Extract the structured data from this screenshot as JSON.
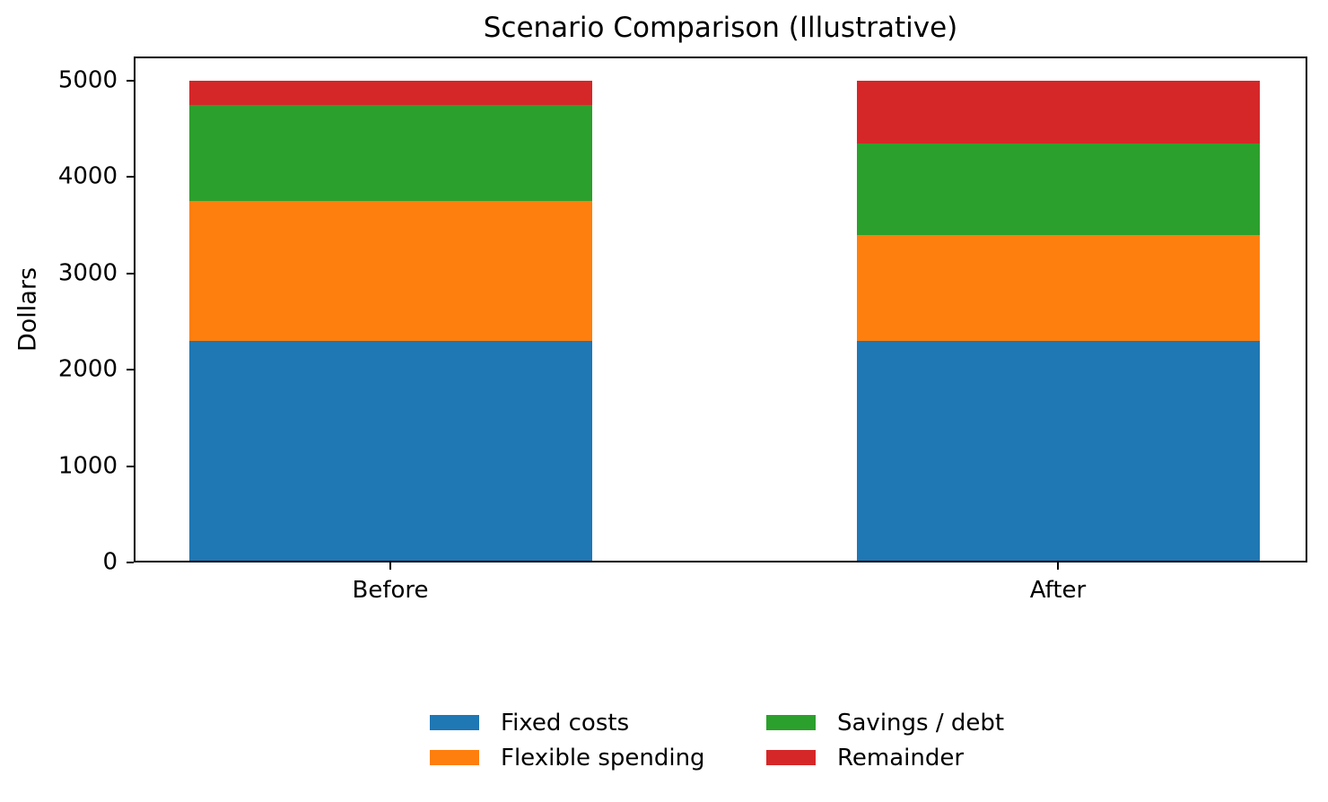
{
  "chart_data": {
    "type": "bar",
    "stacked": true,
    "title": "Scenario Comparison (Illustrative)",
    "xlabel": "",
    "ylabel": "Dollars",
    "categories": [
      "Before",
      "After"
    ],
    "series": [
      {
        "name": "Fixed costs",
        "color": "#1f77b4",
        "values": [
          2300,
          2300
        ]
      },
      {
        "name": "Flexible spending",
        "color": "#ff7f0e",
        "values": [
          1450,
          1100
        ]
      },
      {
        "name": "Savings / debt",
        "color": "#2ca02c",
        "values": [
          1000,
          950
        ]
      },
      {
        "name": "Remainder",
        "color": "#d62728",
        "values": [
          250,
          650
        ]
      }
    ],
    "totals": [
      5000,
      5000
    ],
    "ylim": [
      0,
      5250
    ],
    "yticks": [
      0,
      1000,
      2000,
      3000,
      4000,
      5000
    ],
    "grid": false,
    "legend_position": "below-plot",
    "legend_columns": 2,
    "legend_frame": false
  }
}
